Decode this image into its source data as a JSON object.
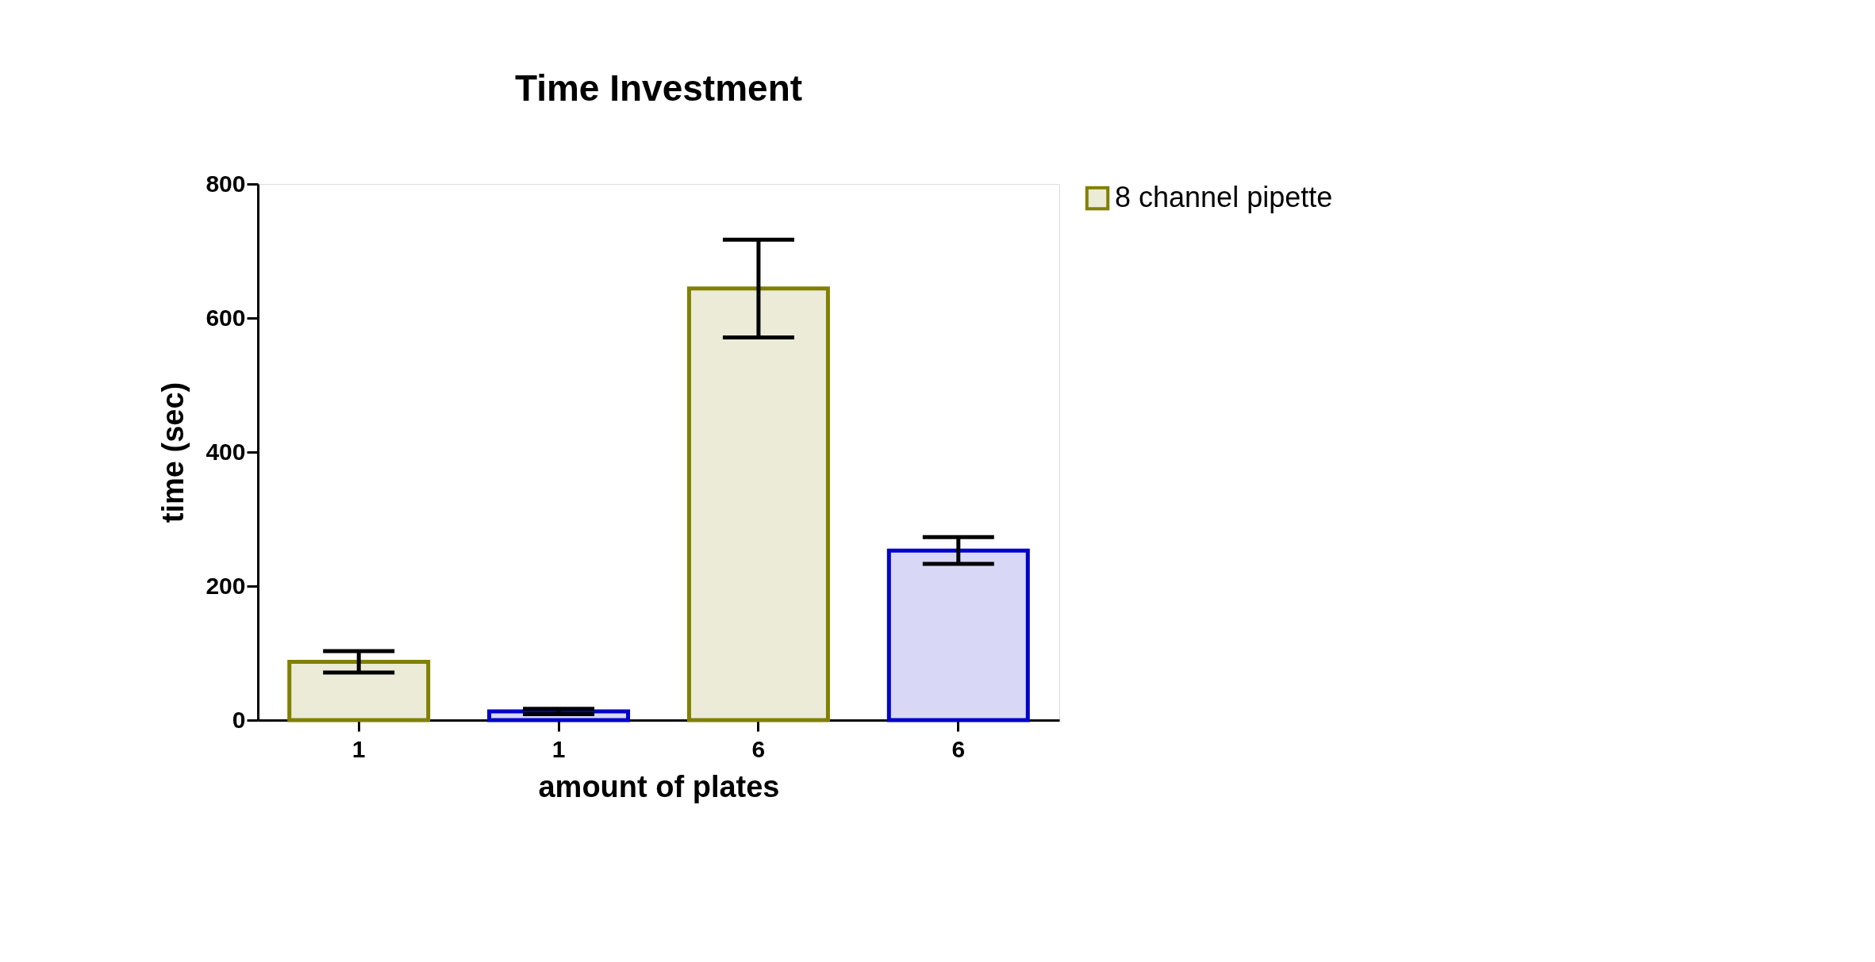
{
  "chart_data": {
    "type": "bar",
    "title": "Time Investment",
    "xlabel": "amount of plates",
    "ylabel": "time (sec)",
    "categories": [
      "1",
      "1",
      "6",
      "6"
    ],
    "series": [
      {
        "name": "8 channel pipette",
        "color": "#808000",
        "values": [
          87,
          null,
          644,
          null
        ],
        "errors": [
          16,
          null,
          73,
          null
        ]
      },
      {
        "color": "#0000c8",
        "values": [
          null,
          13,
          null,
          253
        ],
        "errors": [
          null,
          4,
          null,
          20
        ]
      }
    ],
    "ylim": [
      0,
      800
    ],
    "yticks": [
      0,
      200,
      400,
      600,
      800
    ],
    "grid": false,
    "legend": "top right"
  }
}
